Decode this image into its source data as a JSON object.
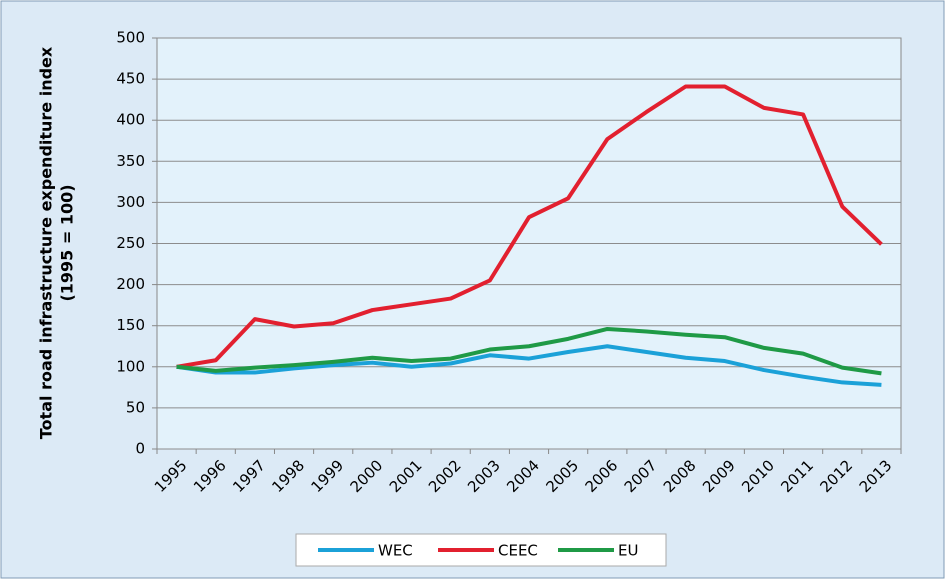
{
  "chart_data": {
    "type": "line",
    "ylabel": [
      "Total road infrastructure expenditure index",
      "(1995 = 100)"
    ],
    "categories": [
      "1995",
      "1996",
      "1997",
      "1998",
      "1999",
      "2000",
      "2001",
      "2002",
      "2003",
      "2004",
      "2005",
      "2006",
      "2007",
      "2008",
      "2009",
      "2010",
      "2011",
      "2012",
      "2013"
    ],
    "series": [
      {
        "name": "WEC",
        "color": "#1ba1d8",
        "values": [
          100,
          93,
          93,
          98,
          102,
          105,
          100,
          104,
          114,
          110,
          118,
          125,
          118,
          111,
          107,
          96,
          88,
          81,
          78
        ]
      },
      {
        "name": "CEEC",
        "color": "#e2202f",
        "values": [
          100,
          108,
          158,
          149,
          153,
          169,
          176,
          183,
          205,
          282,
          305,
          377,
          410,
          441,
          441,
          415,
          407,
          295,
          249
        ]
      },
      {
        "name": "EU",
        "color": "#1f9a46",
        "values": [
          100,
          95,
          99,
          102,
          106,
          111,
          107,
          110,
          121,
          125,
          134,
          146,
          143,
          139,
          136,
          123,
          116,
          99,
          92
        ]
      }
    ],
    "ylim": [
      0,
      500
    ],
    "yticks": [
      0,
      50,
      100,
      150,
      200,
      250,
      300,
      350,
      400,
      450,
      500
    ],
    "grid": true
  }
}
